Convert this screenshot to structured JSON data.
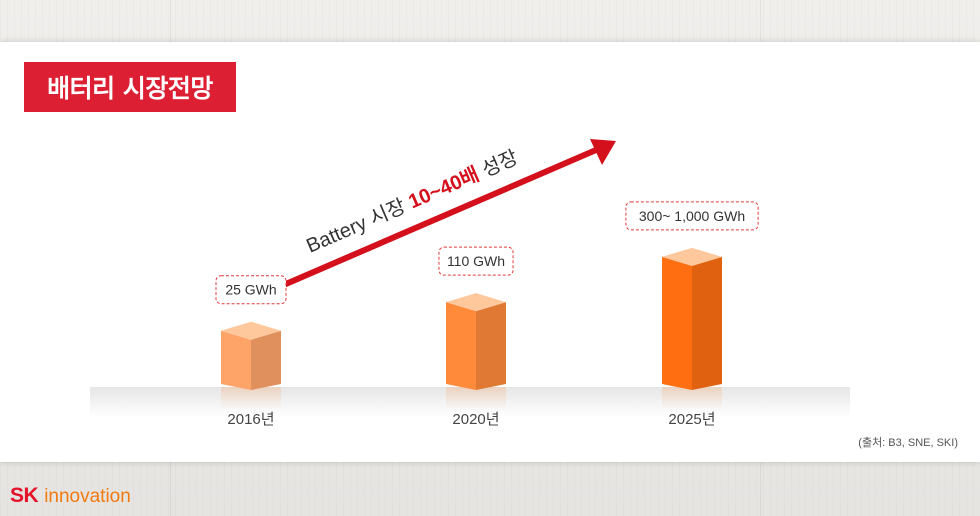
{
  "header": {
    "title": "배터리 시장전망"
  },
  "source": "(출처: B3, SNE, SKI)",
  "logo": {
    "mark": "SK",
    "text": "innovation"
  },
  "colors": {
    "accent": "#dd1f33",
    "bar_light": "#ffa468",
    "bar_mid": "#ff8a3a",
    "bar_dark": "#ff6f12",
    "logo_orange": "#f07a10"
  },
  "chart_data": {
    "type": "bar",
    "title": "",
    "categories": [
      "2016년",
      "2020년",
      "2025년"
    ],
    "values": [
      25,
      110,
      1000
    ],
    "data_labels": [
      "25 GWh",
      "110 GWh",
      "300~ 1,000 GWh"
    ],
    "unit": "GWh",
    "annotation": {
      "prefix": "Battery 시장 ",
      "highlight": "10~40배",
      "suffix": " 성장"
    },
    "grid": false,
    "legend": "none"
  }
}
